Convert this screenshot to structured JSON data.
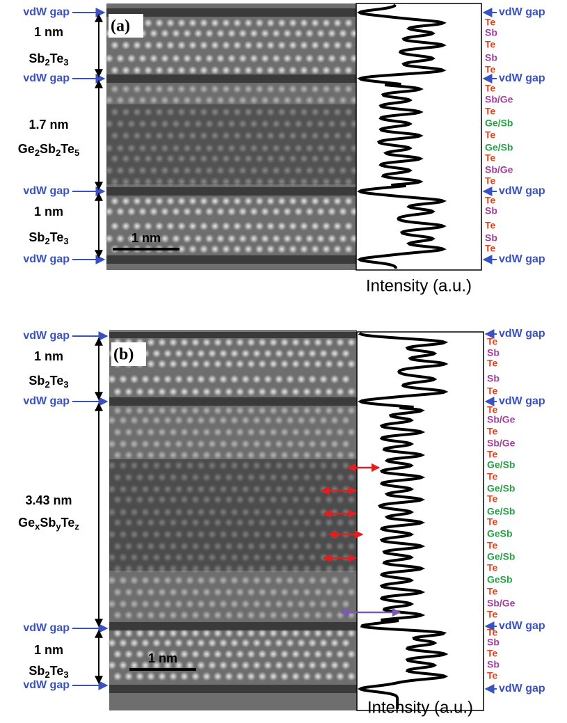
{
  "panels": [
    {
      "label": "(a)",
      "scale_bar": "1 nm",
      "x_label": "Intensity (a.u.)",
      "left": [
        {
          "text": "vdW gap"
        },
        {
          "text": "1 nm"
        },
        {
          "parts": [
            "Sb",
            "2",
            "Te",
            "3"
          ]
        },
        {
          "text": "vdW gap"
        },
        {
          "text": "1.7 nm"
        },
        {
          "parts": [
            "Ge",
            "2",
            "Sb",
            "2",
            "Te",
            "5"
          ]
        },
        {
          "text": "vdW gap"
        },
        {
          "text": "1 nm"
        },
        {
          "parts": [
            "Sb",
            "2",
            "Te",
            "3"
          ]
        },
        {
          "text": "vdW gap"
        }
      ],
      "right": [
        {
          "text": "vdW gap",
          "color": "#3a52c0"
        },
        {
          "text": "Te",
          "color": "#e2431d"
        },
        {
          "text": "Sb",
          "color": "#a03f9c"
        },
        {
          "text": "Te",
          "color": "#e2431d"
        },
        {
          "text": "Sb",
          "color": "#a03f9c"
        },
        {
          "text": "Te",
          "color": "#e2431d"
        },
        {
          "text": "vdW gap",
          "color": "#3a52c0"
        },
        {
          "text": "Te",
          "color": "#e2431d"
        },
        {
          "text": "Sb/Ge",
          "color": "#a03f9c"
        },
        {
          "text": "Te",
          "color": "#e2431d"
        },
        {
          "text": "Ge/Sb",
          "color": "#26a047"
        },
        {
          "text": "Te",
          "color": "#e2431d"
        },
        {
          "text": "Ge/Sb",
          "color": "#26a047"
        },
        {
          "text": "Te",
          "color": "#e2431d"
        },
        {
          "text": "Sb/Ge",
          "color": "#a03f9c"
        },
        {
          "text": "Te",
          "color": "#e2431d"
        },
        {
          "text": "vdW gap",
          "color": "#3a52c0"
        },
        {
          "text": "Te",
          "color": "#e2431d"
        },
        {
          "text": "Sb",
          "color": "#a03f9c"
        },
        {
          "text": "Te",
          "color": "#e2431d"
        },
        {
          "text": "Sb",
          "color": "#a03f9c"
        },
        {
          "text": "Te",
          "color": "#e2431d"
        },
        {
          "text": "vdW gap",
          "color": "#3a52c0"
        }
      ]
    },
    {
      "label": "(b)",
      "scale_bar": "1 nm",
      "x_label": "Intensity (a.u.)",
      "left": [
        {
          "text": "vdW gap"
        },
        {
          "text": "1 nm"
        },
        {
          "parts": [
            "Sb",
            "2",
            "Te",
            "3"
          ]
        },
        {
          "text": "vdW gap"
        },
        {
          "text": "3.43 nm"
        },
        {
          "parts": [
            "Ge",
            "x",
            "Sb",
            "y",
            "Te",
            "z"
          ]
        },
        {
          "text": "vdW gap"
        },
        {
          "text": "1 nm"
        },
        {
          "parts": [
            "Sb",
            "2",
            "Te",
            "3"
          ]
        },
        {
          "text": "vdW gap"
        }
      ],
      "right": [
        {
          "text": "vdW gap",
          "color": "#3a52c0"
        },
        {
          "text": "Te",
          "color": "#e2431d"
        },
        {
          "text": "Sb",
          "color": "#a03f9c"
        },
        {
          "text": "Te",
          "color": "#e2431d"
        },
        {
          "text": "Sb",
          "color": "#a03f9c"
        },
        {
          "text": "Te",
          "color": "#e2431d"
        },
        {
          "text": "vdW gap",
          "color": "#3a52c0"
        },
        {
          "text": "Te",
          "color": "#e2431d"
        },
        {
          "text": "Sb/Ge",
          "color": "#a03f9c"
        },
        {
          "text": "Te",
          "color": "#e2431d"
        },
        {
          "text": "Sb/Ge",
          "color": "#a03f9c"
        },
        {
          "text": "Te",
          "color": "#e2431d"
        },
        {
          "text": "Ge/Sb",
          "color": "#26a047"
        },
        {
          "text": "Te",
          "color": "#e2431d"
        },
        {
          "text": "Ge/Sb",
          "color": "#26a047"
        },
        {
          "text": "Te",
          "color": "#e2431d"
        },
        {
          "text": "Ge/Sb",
          "color": "#26a047"
        },
        {
          "text": "Te",
          "color": "#e2431d"
        },
        {
          "text": "GeSb",
          "color": "#26a047"
        },
        {
          "text": "Te",
          "color": "#e2431d"
        },
        {
          "text": "Ge/Sb",
          "color": "#26a047"
        },
        {
          "text": "Te",
          "color": "#e2431d"
        },
        {
          "text": "GeSb",
          "color": "#26a047"
        },
        {
          "text": "Te",
          "color": "#e2431d"
        },
        {
          "text": "Sb/Ge",
          "color": "#a03f9c"
        },
        {
          "text": "Te",
          "color": "#e2431d"
        },
        {
          "text": "vdW gap",
          "color": "#3a52c0"
        },
        {
          "text": "Te",
          "color": "#e2431d"
        },
        {
          "text": "Sb",
          "color": "#a03f9c"
        },
        {
          "text": "Te",
          "color": "#e2431d"
        },
        {
          "text": "Sb",
          "color": "#a03f9c"
        },
        {
          "text": "Te",
          "color": "#e2431d"
        },
        {
          "text": "vdW gap",
          "color": "#3a52c0"
        }
      ]
    }
  ]
}
